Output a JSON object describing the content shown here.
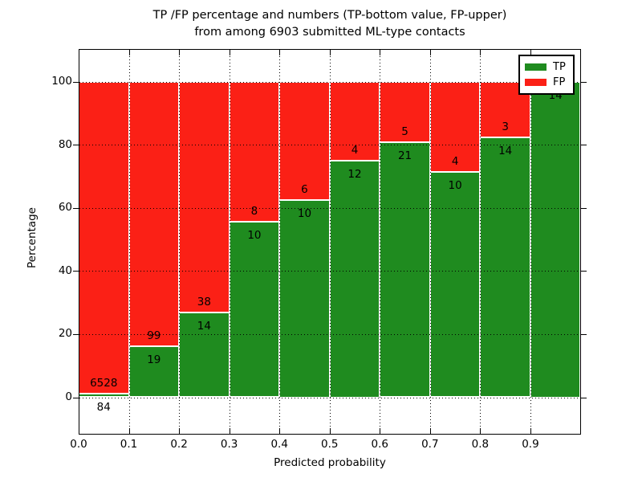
{
  "title": {
    "line1": "TP /FP percentage and numbers (TP-bottom value, FP-upper)",
    "line2": "from among 6903 submitted ML-type contacts"
  },
  "axes": {
    "x_label": "Predicted probability",
    "y_label": "Percentage",
    "x_tick_labels": [
      "0.0",
      "0.1",
      "0.2",
      "0.3",
      "0.4",
      "0.5",
      "0.6",
      "0.7",
      "0.8",
      "0.9"
    ],
    "y_tick_labels": [
      "0",
      "20",
      "40",
      "60",
      "80",
      "100"
    ]
  },
  "legend": {
    "entries": [
      {
        "label": "TP",
        "color": "#1f8b1f"
      },
      {
        "label": "FP",
        "color": "#fb2016"
      }
    ]
  },
  "chart_data": {
    "type": "bar",
    "stacked": true,
    "normalized": "each bin scaled to 100%, segment heights are percentages; labels show raw counts",
    "title": "TP /FP percentage and numbers (TP-bottom value, FP-upper) from among 6903 submitted ML-type contacts",
    "xlabel": "Predicted probability",
    "ylabel": "Percentage",
    "bin_edges": [
      0.0,
      0.1,
      0.2,
      0.3,
      0.4,
      0.5,
      0.6,
      0.7,
      0.8,
      0.9,
      1.0
    ],
    "categories": [
      "0.0-0.1",
      "0.1-0.2",
      "0.2-0.3",
      "0.3-0.4",
      "0.4-0.5",
      "0.5-0.6",
      "0.6-0.7",
      "0.7-0.8",
      "0.8-0.9",
      "0.9-1.0"
    ],
    "series": [
      {
        "name": "TP",
        "color": "#1f8b1f",
        "values": [
          84,
          19,
          14,
          10,
          10,
          12,
          21,
          10,
          14,
          14
        ]
      },
      {
        "name": "FP",
        "color": "#fb2016",
        "values": [
          6528,
          99,
          38,
          8,
          6,
          4,
          5,
          4,
          3,
          0
        ]
      }
    ],
    "tp_percent": [
      1.27,
      16.1,
      26.92,
      55.56,
      62.5,
      75.0,
      80.77,
      71.43,
      82.35,
      100.0
    ],
    "total_contacts": 6903,
    "xlim": [
      0.0,
      1.0
    ],
    "ylim": [
      -12,
      110
    ],
    "y_ticks": [
      0,
      20,
      40,
      60,
      80,
      100
    ],
    "x_ticks": [
      0.0,
      0.1,
      0.2,
      0.3,
      0.4,
      0.5,
      0.6,
      0.7,
      0.8,
      0.9
    ],
    "grid": true,
    "grid_style": "dotted",
    "legend_position": "upper right",
    "bar_edge_color": "#ffffff"
  }
}
